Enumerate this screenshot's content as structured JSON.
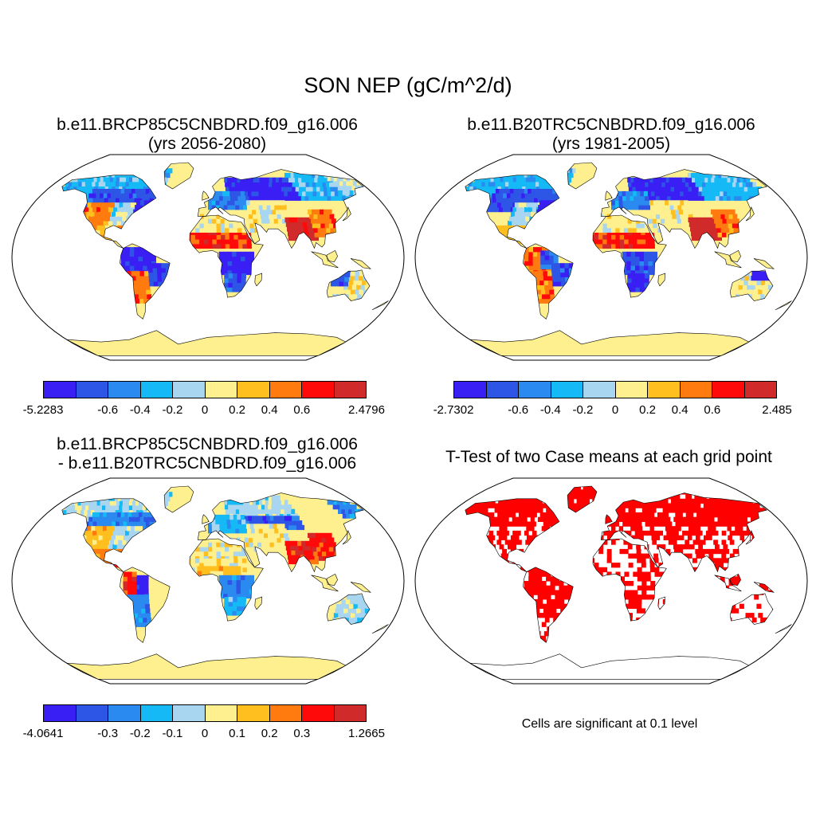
{
  "figure": {
    "title": "SON NEP (gC/m^2/d)"
  },
  "panels": [
    {
      "id": "case1",
      "title_line1": "b.e11.BRCP85C5CNBDRD.f09_g16.006",
      "title_line2": "(yrs 2056-2080)",
      "colorbar": {
        "labels": [
          "-5.2283",
          "-0.6",
          "-0.4",
          "-0.2",
          "0",
          "0.2",
          "0.4",
          "0.6",
          "2.4796"
        ]
      }
    },
    {
      "id": "case2",
      "title_line1": "b.e11.B20TRC5CNBDRD.f09_g16.006",
      "title_line2": "(yrs 1981-2005)",
      "colorbar": {
        "labels": [
          "-2.7302",
          "-0.6",
          "-0.4",
          "-0.2",
          "0",
          "0.2",
          "0.4",
          "0.6",
          "2.485"
        ]
      }
    },
    {
      "id": "diff",
      "title_line1": "b.e11.BRCP85C5CNBDRD.f09_g16.006",
      "title_line2": "- b.e11.B20TRC5CNBDRD.f09_g16.006",
      "colorbar": {
        "labels": [
          "-4.0641",
          "-0.3",
          "-0.2",
          "-0.1",
          "0",
          "0.1",
          "0.2",
          "0.3",
          "1.2665"
        ]
      }
    },
    {
      "id": "ttest",
      "title_line1": "T-Test of two Case means at each grid point",
      "note": "Cells are significant at 0.1 level"
    }
  ],
  "colors": {
    "colorbar": [
      "#3a1ff5",
      "#2d55e6",
      "#2b8af0",
      "#14b9f5",
      "#a8d6f0",
      "#fff08f",
      "#ffbf1f",
      "#ff7b0f",
      "#ff0a0a",
      "#d12a2a"
    ],
    "land_base": "#fff08f",
    "significant": "#ff0000",
    "ocean": "#ffffff"
  }
}
